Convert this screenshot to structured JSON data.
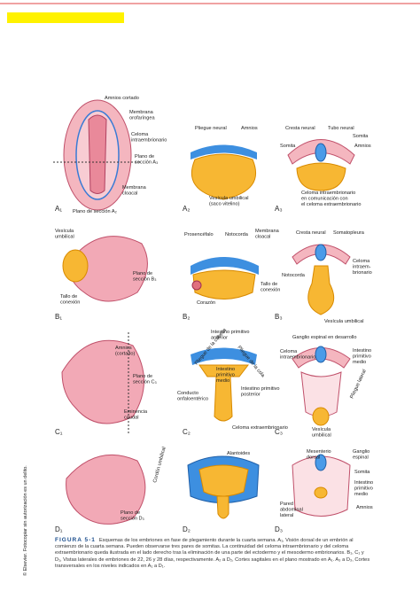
{
  "figure": {
    "panels": [
      {
        "id": "A₁",
        "labels": [
          [
            "Amnios cortado"
          ],
          [
            "Membrana",
            "orofaríngea"
          ],
          [
            "Celoma",
            "intraembrionario"
          ],
          [
            "Plano de",
            "sección A₃"
          ],
          [
            "Membrana",
            "cloacal"
          ],
          [
            "Plano de sección A₂"
          ]
        ]
      },
      {
        "id": "A₂",
        "labels": [
          [
            "Pliegue neural"
          ],
          [
            "Amnios"
          ],
          [
            "Vesícula umbilical",
            "(saco vitelino)"
          ]
        ]
      },
      {
        "id": "A₃",
        "labels": [
          [
            "Cresta neural"
          ],
          [
            "Tubo neural"
          ],
          [
            "Somita"
          ],
          [
            "Somita"
          ],
          [
            "Amnios"
          ],
          [
            "Celoma intraembrionario",
            "en comunicación con",
            "el celoma extraembrionario"
          ]
        ]
      },
      {
        "id": "B₁",
        "labels": [
          [
            "Vesícula",
            "umbilical"
          ],
          [
            "Plano de",
            "sección B₃"
          ],
          [
            "Tallo de",
            "conexión"
          ]
        ]
      },
      {
        "id": "B₂",
        "labels": [
          [
            "Prosencéfalo"
          ],
          [
            "Notocorda"
          ],
          [
            "Membrana",
            "cloacal"
          ],
          [
            "Corazón"
          ],
          [
            "Tallo de",
            "conexión"
          ]
        ]
      },
      {
        "id": "B₃",
        "labels": [
          [
            "Cresta neural"
          ],
          [
            "Somatopleura"
          ],
          [
            "Notocorda"
          ],
          [
            "Celoma",
            "intraem-",
            "brionario"
          ],
          [
            "Vesícula umbilical"
          ]
        ]
      },
      {
        "id": "C₁",
        "labels": [
          [
            "Amnios",
            "(cortado)"
          ],
          [
            "Plano de",
            "sección C₃"
          ],
          [
            "Eminencia",
            "caudal"
          ]
        ]
      },
      {
        "id": "C₂",
        "labels": [
          [
            "Intestino primitivo",
            "anterior"
          ],
          [
            "Pliegue de la cabeza"
          ],
          [
            "Pliegue de la cola"
          ],
          [
            "Intestino",
            "primitivo",
            "medio"
          ],
          [
            "Conducto",
            "onfaloentérico"
          ],
          [
            "Intestino primitivo",
            "posterior"
          ],
          [
            "Celoma extraembrionario"
          ]
        ]
      },
      {
        "id": "C₃",
        "labels": [
          [
            "Ganglio espinal en desarrollo"
          ],
          [
            "Celoma",
            "intraembrionario"
          ],
          [
            "Intestino",
            "primitivo",
            "medio"
          ],
          [
            "Pliegue lateral"
          ],
          [
            "Vesícula",
            "umbilical"
          ]
        ]
      },
      {
        "id": "D₁",
        "labels": [
          [
            "Plano de",
            "sección D₃"
          ],
          [
            "Cordón umbilical"
          ]
        ]
      },
      {
        "id": "D₂",
        "labels": [
          [
            "Alantoides"
          ]
        ]
      },
      {
        "id": "D₃",
        "labels": [
          [
            "Mesenterio",
            "dorsal"
          ],
          [
            "Ganglio",
            "espinal"
          ],
          [
            "Somita"
          ],
          [
            "Intestino",
            "primitivo",
            "medio"
          ],
          [
            "Amnios"
          ],
          [
            "Pared",
            "abdominal",
            "lateral"
          ]
        ]
      }
    ],
    "caption": {
      "label": "FIGURA 5-1",
      "text": "Esquemas de los embriones en fase de plegamiento durante la cuarta semana. A₁, Visión dorsal de un embrión al comienzo de la cuarta semana. Pueden observarse tres pares de somitas. La continuidad del celoma intraembrionario y del celoma extraembrionario queda ilustrada en el lado derecho tras la eliminación de una parte del ectodermo y el mesodermo embrionarios. B₁, C₁ y D₁, Vistas laterales de embriones de 22, 26 y 28 días, respectivamente. A₂ a D₂, Cortes sagitales en el plano mostrado en A₁. A₃ a D₃, Cortes transversales en los niveles indicados en A₁ a D₁."
    },
    "copyright": "© Elsevier. Fotocopiar sin autorización es un delito."
  }
}
